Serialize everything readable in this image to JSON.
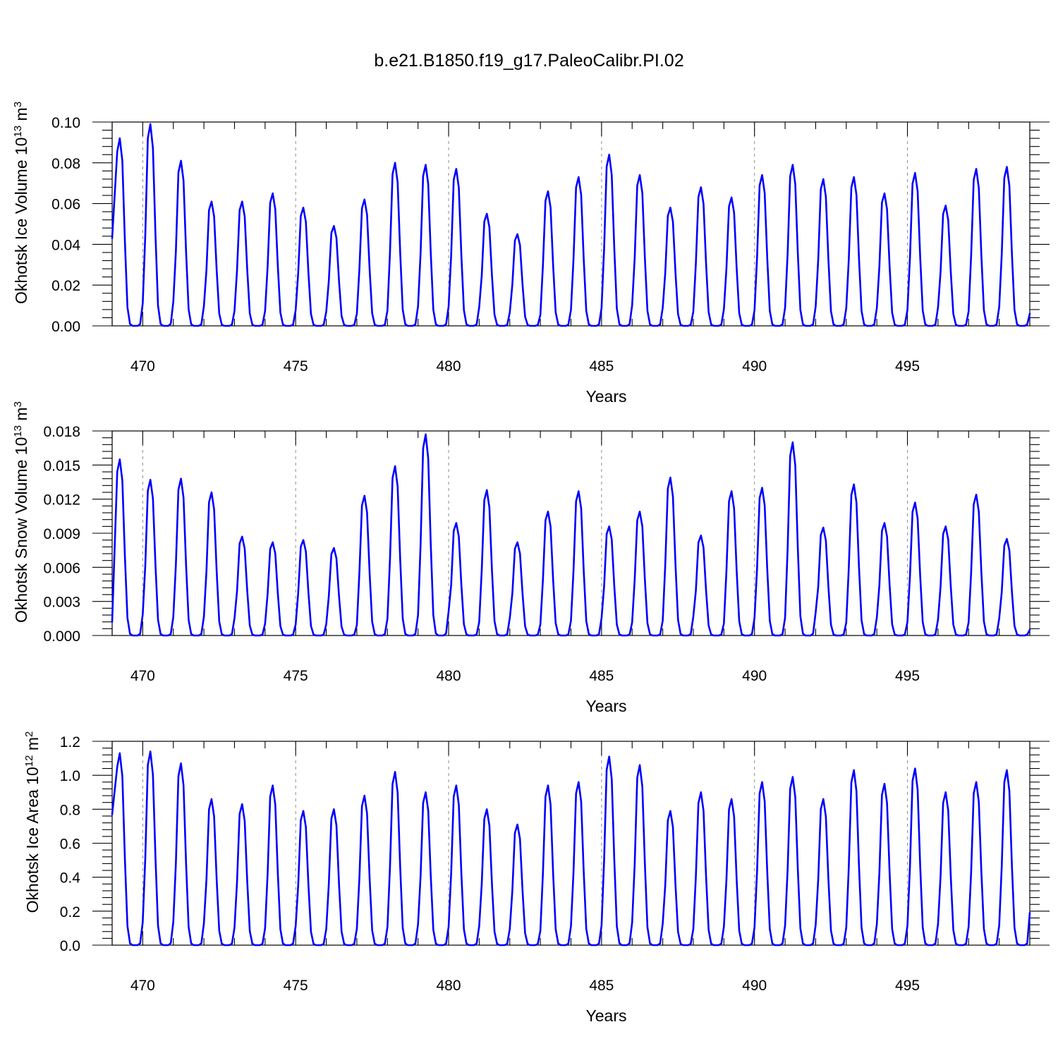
{
  "title": "b.e21.B1850.f19_g17.PaleoCalibr.PI.02",
  "colors": {
    "series": "#0000ff",
    "axis": "#000000",
    "grid": "#888888"
  },
  "chart_data": [
    {
      "type": "line",
      "ylabel": "Okhotsk Ice Volume 10",
      "ylabel_exp": "13",
      "ylabel_unit": "m",
      "ylabel_unit_exp": "3",
      "xlabel": "Years",
      "xlim": [
        469,
        499
      ],
      "ylim": [
        0,
        0.1
      ],
      "xticks": [
        470,
        475,
        480,
        485,
        490,
        495
      ],
      "xtick_labels": [
        "470",
        "475",
        "480",
        "485",
        "490",
        "495"
      ],
      "yticks": [
        0,
        0.02,
        0.04,
        0.06,
        0.08,
        0.1
      ],
      "ytick_labels": [
        "0.00",
        "0.02",
        "0.04",
        "0.06",
        "0.08",
        "0.10"
      ],
      "vgrid": [
        470,
        475,
        480,
        485,
        490,
        495
      ],
      "peaks": [
        0.092,
        0.099,
        0.081,
        0.061,
        0.061,
        0.065,
        0.058,
        0.049,
        0.062,
        0.08,
        0.079,
        0.077,
        0.055,
        0.045,
        0.066,
        0.073,
        0.084,
        0.074,
        0.058,
        0.068,
        0.063,
        0.074,
        0.079,
        0.072,
        0.073,
        0.065,
        0.075,
        0.059,
        0.077,
        0.078
      ],
      "start_value": 0.043,
      "end_value": 0.006
    },
    {
      "type": "line",
      "ylabel": "Okhotsk Snow Volume 10",
      "ylabel_exp": "13",
      "ylabel_unit": "m",
      "ylabel_unit_exp": "3",
      "xlabel": "Years",
      "xlim": [
        469,
        499
      ],
      "ylim": [
        0,
        0.018
      ],
      "xticks": [
        470,
        475,
        480,
        485,
        490,
        495
      ],
      "xtick_labels": [
        "470",
        "475",
        "480",
        "485",
        "490",
        "495"
      ],
      "yticks": [
        0,
        0.003,
        0.006,
        0.009,
        0.012,
        0.015,
        0.018
      ],
      "ytick_labels": [
        "0.000",
        "0.003",
        "0.006",
        "0.009",
        "0.012",
        "0.015",
        "0.018"
      ],
      "vgrid": [
        470,
        475,
        480,
        485,
        490,
        495
      ],
      "peaks": [
        0.0155,
        0.0137,
        0.0138,
        0.0126,
        0.0087,
        0.0082,
        0.0084,
        0.0077,
        0.0123,
        0.0149,
        0.0177,
        0.0099,
        0.0128,
        0.0082,
        0.0109,
        0.0127,
        0.0096,
        0.0109,
        0.0139,
        0.0088,
        0.0127,
        0.013,
        0.017,
        0.0095,
        0.0133,
        0.0099,
        0.0117,
        0.0096,
        0.0124,
        0.0085
      ],
      "start_value": 0.0012,
      "end_value": 0.0005
    },
    {
      "type": "line",
      "ylabel": "Okhotsk Ice Area 10",
      "ylabel_exp": "12",
      "ylabel_unit": "m",
      "ylabel_unit_exp": "2",
      "xlabel": "Years",
      "xlim": [
        469,
        499
      ],
      "ylim": [
        0,
        1.2
      ],
      "xticks": [
        470,
        475,
        480,
        485,
        490,
        495
      ],
      "xtick_labels": [
        "470",
        "475",
        "480",
        "485",
        "490",
        "495"
      ],
      "yticks": [
        0,
        0.2,
        0.4,
        0.6,
        0.8,
        1.0,
        1.2
      ],
      "ytick_labels": [
        "0.0",
        "0.2",
        "0.4",
        "0.6",
        "0.8",
        "1.0",
        "1.2"
      ],
      "vgrid": [
        470,
        475,
        480,
        485,
        490,
        495
      ],
      "peaks": [
        1.13,
        1.14,
        1.07,
        0.86,
        0.83,
        0.94,
        0.79,
        0.8,
        0.88,
        1.02,
        0.9,
        0.94,
        0.8,
        0.71,
        0.94,
        0.96,
        1.11,
        1.06,
        0.79,
        0.9,
        0.86,
        0.96,
        0.99,
        0.86,
        1.03,
        0.95,
        1.04,
        0.9,
        0.96,
        1.03
      ],
      "start_value": 0.77,
      "end_value": 0.19
    }
  ]
}
